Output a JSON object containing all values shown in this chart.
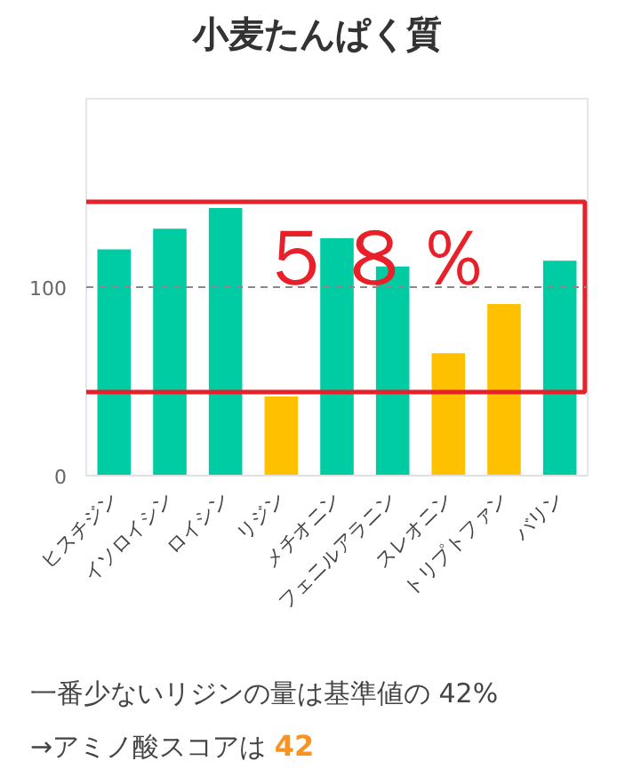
{
  "chart_data": {
    "type": "bar",
    "title": "小麦たんぱく質",
    "categories": [
      "ヒスチジン",
      "イソロイシン",
      "ロイシン",
      "リジン",
      "メチオニン",
      "フェニルアラニン",
      "スレオニン",
      "トリプトファン",
      "バリン"
    ],
    "values": [
      120,
      131,
      142,
      42,
      126,
      111,
      65,
      91,
      114
    ],
    "colors": [
      "#00cca3",
      "#00cca3",
      "#00cca3",
      "#ffc000",
      "#00cca3",
      "#00cca3",
      "#ffc000",
      "#ffc000",
      "#00cca3"
    ],
    "ylim": [
      0,
      200
    ],
    "yticks": [
      0,
      100
    ],
    "grid": false,
    "ref_lines": [
      {
        "axis": "y",
        "value": 100,
        "color": "#888888",
        "line_style": "dashed"
      }
    ],
    "annotations": [
      "５８％",
      "一番少ないリジンの量は基準値の 42%",
      "→アミノ酸スコアは",
      "42"
    ]
  }
}
